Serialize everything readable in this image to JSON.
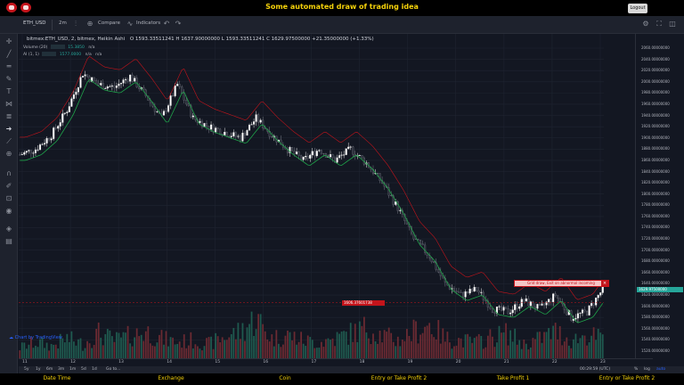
{
  "header": {
    "title": "Some automated draw of trading idea",
    "logout_label": "Logout"
  },
  "toolbar": {
    "symbol": "ETH_USD",
    "interval": "2m",
    "compare": "Compare",
    "indicators": "Indicators"
  },
  "legend": {
    "main": "bitmex:ETH_USD, 2, bitmex, Heikin Ashi",
    "ohlc": "O 1593.33511241   H 1637.90000000   L 1593.33511241   C 1629.97500000   +21.35000000 (+1.33%)",
    "volume_label": "Volume (20)",
    "volume_value": "15.3850",
    "volume_nan": "n/a",
    "ai_label": "AI (1, 1)",
    "ai_value": "1577.0000",
    "ai_nan1": "n/a",
    "ai_nan2": "n/a"
  },
  "price_axis": {
    "ticks": [
      "2060.00000000",
      "2040.00000000",
      "2020.00000000",
      "2000.00000000",
      "1980.00000000",
      "1960.00000000",
      "1940.00000000",
      "1920.00000000",
      "1900.00000000",
      "1880.00000000",
      "1860.00000000",
      "1840.00000000",
      "1820.00000000",
      "1800.00000000",
      "1780.00000000",
      "1760.00000000",
      "1740.00000000",
      "1720.00000000",
      "1700.00000000",
      "1680.00000000",
      "1660.00000000",
      "1640.00000000",
      "1620.00000000",
      "1600.00000000",
      "1580.00000000",
      "1560.00000000",
      "1540.00000000",
      "1520.00000000"
    ],
    "current_price": "1629.97500000",
    "marker_price": "1606.37601738"
  },
  "time_axis": {
    "ticks": [
      "11",
      "12",
      "13",
      "14",
      "15",
      "16",
      "17",
      "18",
      "19",
      "20",
      "21",
      "22",
      "23"
    ]
  },
  "bottom_toolbar": {
    "ranges": [
      "5y",
      "1y",
      "6m",
      "3m",
      "1m",
      "5d",
      "1d"
    ],
    "goto": "Go to...",
    "clock": "00:29:59 (UTC)",
    "percent": "%",
    "log": "log",
    "auto": "auto"
  },
  "attribution": "Chart by TradingView",
  "alert_text": "Grid draw, Exit on abnormal incoming",
  "nav": {
    "items": [
      "Date Time",
      "Exchange",
      "Coin",
      "Entry or Take Profit 2",
      "Take Profit 1",
      "Entry or Take Profit 2"
    ]
  },
  "colors": {
    "up": "#26a69a",
    "down": "#ef5350",
    "accent": "#f5d20a",
    "background": "#131722"
  },
  "chart_data": {
    "type": "candlestick",
    "symbol": "bitmex:ETH_USD",
    "interval": "2",
    "style": "Heikin Ashi",
    "ylim": [
      1520,
      2060
    ],
    "x": [
      "11",
      "12",
      "13",
      "14",
      "15",
      "16",
      "17",
      "18",
      "19",
      "20",
      "21",
      "22",
      "23"
    ],
    "price_path": [
      1870,
      1880,
      1905,
      1950,
      2015,
      1995,
      1990,
      2010,
      1975,
      1935,
      1995,
      1935,
      1920,
      1910,
      1900,
      1935,
      1905,
      1880,
      1860,
      1880,
      1860,
      1880,
      1855,
      1820,
      1775,
      1720,
      1690,
      1640,
      1620,
      1630,
      1595,
      1590,
      1610,
      1595,
      1620,
      1580,
      1590,
      1630
    ],
    "volume_path": [
      12,
      18,
      14,
      22,
      16,
      28,
      20,
      25,
      30,
      22,
      18,
      20,
      16,
      24,
      30,
      45,
      22,
      26,
      20,
      18,
      22,
      28,
      34,
      26,
      20,
      30,
      38,
      22,
      20,
      18,
      24,
      28,
      16,
      22,
      30,
      20,
      26,
      22
    ],
    "legend": [
      "Volume (20)",
      "AI (1, 1)"
    ]
  }
}
